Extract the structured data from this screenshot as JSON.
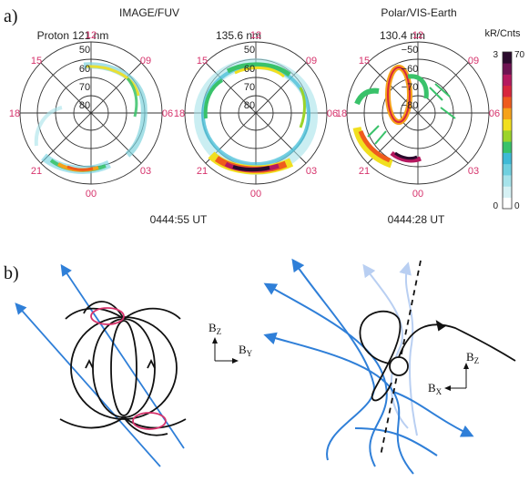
{
  "panel_a": {
    "label": "a)",
    "instrument_left": "IMAGE/FUV",
    "instrument_right": "Polar/VIS-Earth",
    "maps": [
      {
        "title": "Proton 121 nm",
        "lat_labels": [
          "50",
          "60",
          "70",
          "80"
        ]
      },
      {
        "title": "135.6 nm",
        "lat_labels": [
          "50",
          "60",
          "70",
          "80"
        ]
      },
      {
        "title": "130.4 nm",
        "lat_labels": [
          "−50",
          "−60",
          "−70",
          "−80"
        ]
      }
    ],
    "clock_labels": {
      "top": "12",
      "upper_left": "15",
      "upper_right": "09",
      "left": "18",
      "right": "06",
      "lower_left": "21",
      "lower_right": "03",
      "bottom": "00"
    },
    "time_left": "0444:55 UT",
    "time_right": "0444:28 UT",
    "colorbar": {
      "unit": "kR/Cnts",
      "max_left": "3",
      "max_right": "70",
      "min_left": "0",
      "min_right": "0",
      "colors": [
        "#ffffff",
        "#d6f1f4",
        "#a6e3ea",
        "#6fd0df",
        "#3fbad6",
        "#39c26a",
        "#9bd42a",
        "#f1df1f",
        "#f5a21a",
        "#ef5b1d",
        "#d8263d",
        "#b5195f",
        "#6e1352",
        "#2a0a2c"
      ]
    }
  },
  "panel_b": {
    "label": "b)",
    "left_axes": {
      "vertical": "B",
      "vertical_sub": "Z",
      "horizontal": "B",
      "horizontal_sub": "Y"
    },
    "right_axes": {
      "vertical": "B",
      "vertical_sub": "Z",
      "horizontal": "B",
      "horizontal_sub": "X"
    },
    "colors": {
      "field_line": "#2f7fd8",
      "faded_line": "#b9cff2",
      "cusp_ring": "#d6336c",
      "earth_line": "#111111"
    }
  }
}
